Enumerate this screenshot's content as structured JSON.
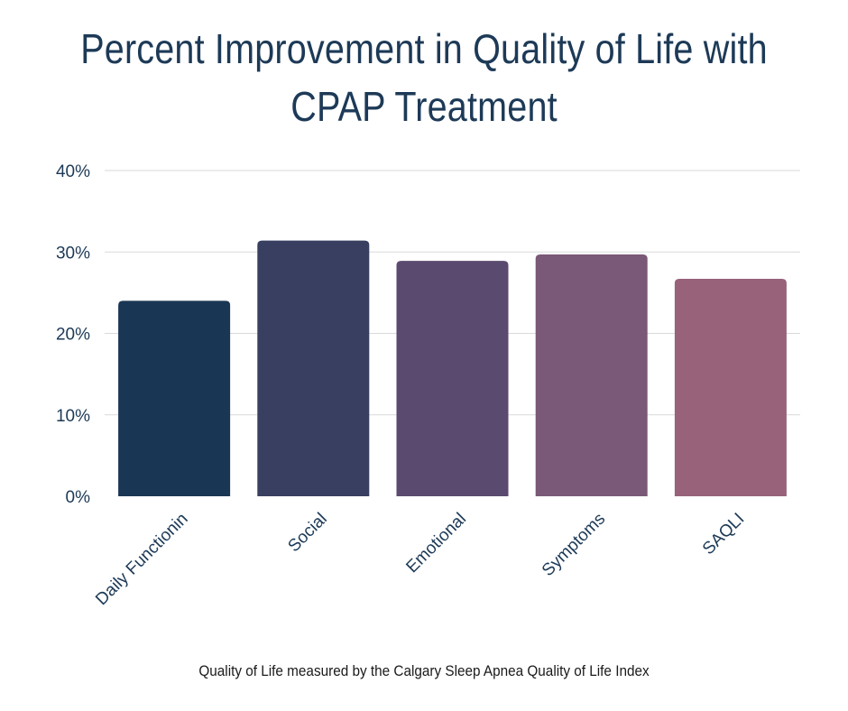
{
  "title_lines": [
    "Percent Improvement in Quality of Life with",
    "CPAP Treatment"
  ],
  "caption": "Quality of Life measured by the Calgary Sleep Apnea Quality of Life Index",
  "chart_data": {
    "type": "bar",
    "title": "Percent Improvement in Quality of Life with CPAP Treatment",
    "categories": [
      "Daily Functionin",
      "Social",
      "Emotional",
      "Symptoms",
      "SAQLI"
    ],
    "values": [
      24,
      31.4,
      28.9,
      29.7,
      26.7
    ],
    "unit": "%",
    "ylim": [
      0,
      40
    ],
    "yticks": [
      0,
      10,
      20,
      30,
      40
    ],
    "ytick_labels": [
      "0%",
      "10%",
      "20%",
      "30%",
      "40%"
    ],
    "xlabel": "",
    "ylabel": "",
    "grid": true,
    "legend": "none",
    "colors": [
      "#1a3655",
      "#393f60",
      "#5b4a6f",
      "#7a5877",
      "#98627b"
    ],
    "tick_color": "#1d3a57",
    "grid_color": "#d9d9d9"
  }
}
